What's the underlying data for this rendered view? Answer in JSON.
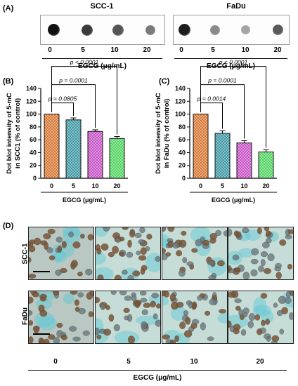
{
  "panels": {
    "a": {
      "label": "(A)",
      "blots": [
        {
          "title": "SCC-1",
          "lanes": [
            "0",
            "5",
            "10",
            "20"
          ],
          "shades": [
            "#111111",
            "#3a3a3a",
            "#555555",
            "#7a7a7a"
          ]
        },
        {
          "title": "FaDu",
          "lanes": [
            "0",
            "5",
            "10",
            "20"
          ],
          "shades": [
            "#1c1c1c",
            "#8a8a8a",
            "#a5a5a5",
            "#5a5a5a"
          ]
        }
      ],
      "xlabel": "EGCG (μg/mL)"
    },
    "d": {
      "label": "(D)",
      "rows": [
        "SCC-1",
        "FaDu"
      ],
      "columns": [
        "0",
        "5",
        "10",
        "20"
      ],
      "xlabel": "EGCG (μg/mL)"
    }
  },
  "chart_data": [
    {
      "panel_label": "(B)",
      "type": "bar",
      "categories": [
        "0",
        "5",
        "10",
        "20"
      ],
      "values": [
        100,
        91,
        73,
        62
      ],
      "errors": [
        0,
        3,
        2.5,
        3
      ],
      "colors": [
        "#d2691e",
        "#2b8c9a",
        "#c040c0",
        "#3fcf4f"
      ],
      "ylabel_line1": "Dot blot intensity of 5-mC",
      "ylabel_line2": "in SCC1 (% of control)",
      "xlabel": "EGCG (μg/mL)",
      "ylim": [
        0,
        140
      ],
      "yticks": [
        "0",
        "20",
        "40",
        "60",
        "80",
        "100",
        "120",
        "140"
      ],
      "comparisons": [
        {
          "from": 0,
          "to": 1,
          "text": "p = 0.0805"
        },
        {
          "from": 0,
          "to": 2,
          "text": "p = 0.0001"
        },
        {
          "from": 0,
          "to": 3,
          "text": "p < 0.0001"
        }
      ]
    },
    {
      "panel_label": "(C)",
      "type": "bar",
      "categories": [
        "0",
        "5",
        "10",
        "20"
      ],
      "values": [
        100,
        70,
        55,
        41
      ],
      "errors": [
        0,
        4,
        3.5,
        3.5
      ],
      "colors": [
        "#d2691e",
        "#2b8c9a",
        "#c040c0",
        "#3fcf4f"
      ],
      "ylabel_line1": "Dot blot intensity of 5-mC",
      "ylabel_line2": "in FaDu (% of control)",
      "xlabel": "EGCG (μg/mL)",
      "ylim": [
        0,
        140
      ],
      "yticks": [
        "0",
        "20",
        "40",
        "60",
        "80",
        "100",
        "120",
        "140"
      ],
      "comparisons": [
        {
          "from": 0,
          "to": 1,
          "text": "p = 0.0014"
        },
        {
          "from": 0,
          "to": 2,
          "text": "p = 0.0001"
        },
        {
          "from": 0,
          "to": 3,
          "text": "p < 0.0001"
        }
      ]
    }
  ]
}
